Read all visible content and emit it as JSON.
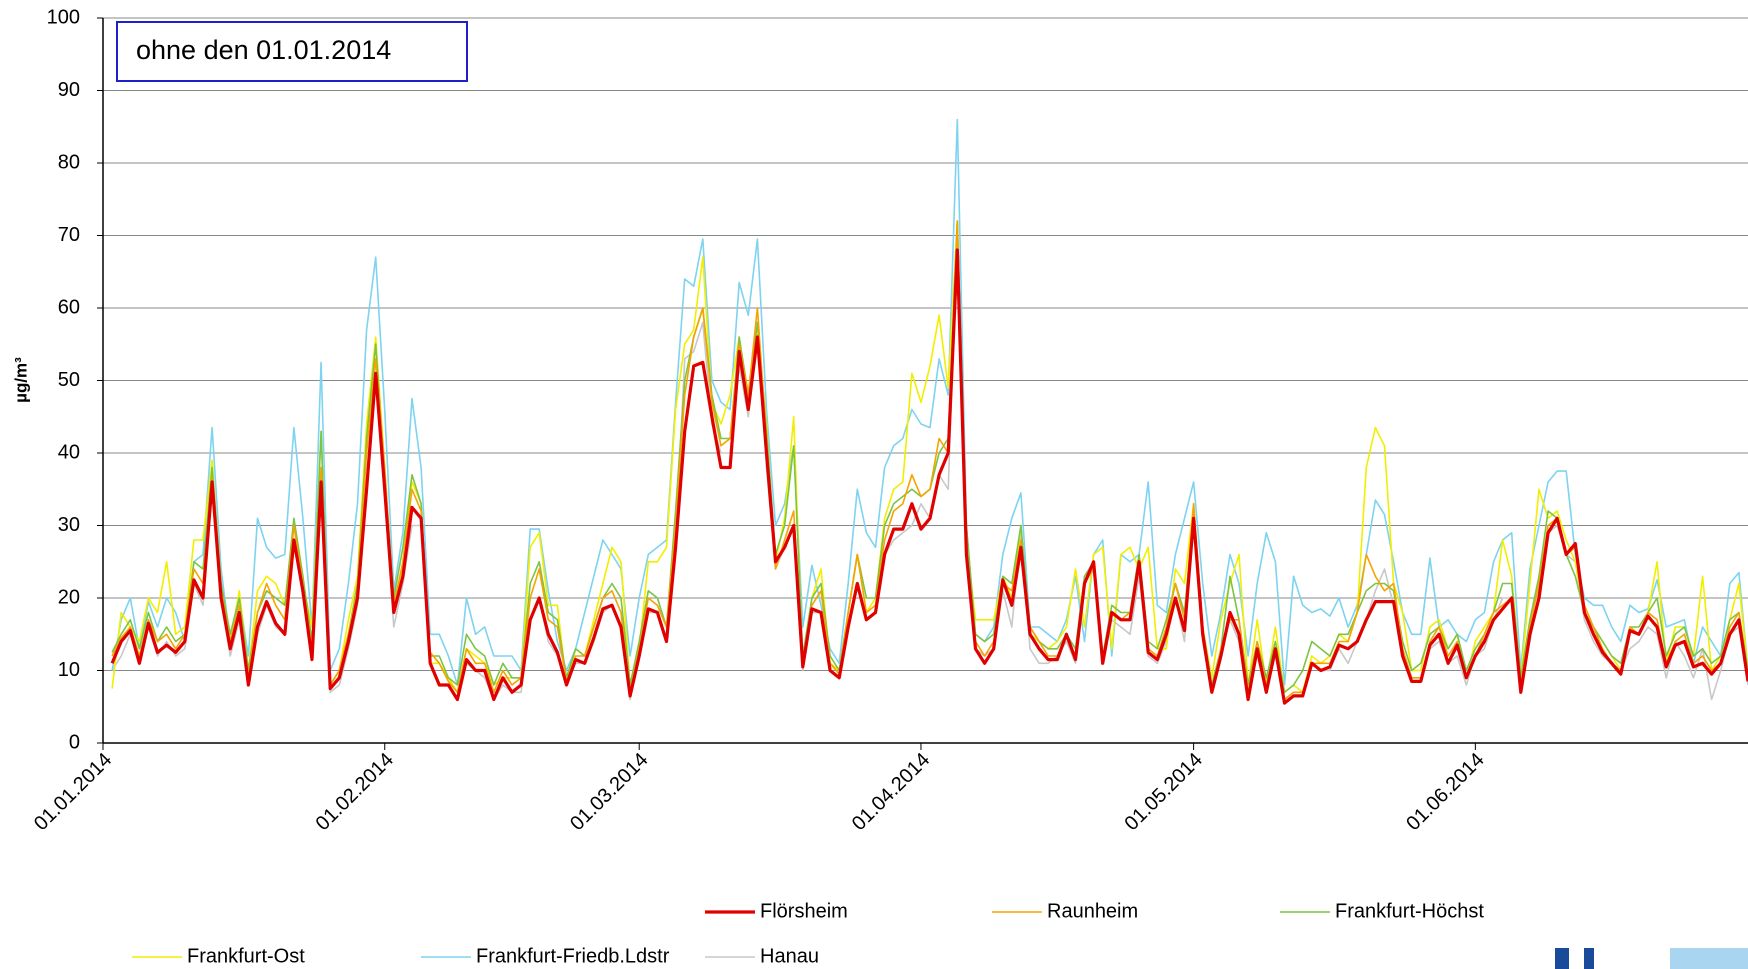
{
  "chart_data": {
    "type": "line",
    "annotation": "ohne den 01.01.2014",
    "y_label": "µg/m³",
    "xlim": [
      0,
      181
    ],
    "ylim": [
      0,
      100
    ],
    "yticks": [
      0,
      10,
      20,
      30,
      40,
      50,
      60,
      70,
      80,
      90,
      100
    ],
    "xticks": [
      {
        "value": 0,
        "label": "01.01.2014"
      },
      {
        "value": 31,
        "label": "01.02.2014"
      },
      {
        "value": 59,
        "label": "01.03.2014"
      },
      {
        "value": 90,
        "label": "01.04.2014"
      },
      {
        "value": 120,
        "label": "01.05.2014"
      },
      {
        "value": 151,
        "label": "01.06.2014"
      }
    ],
    "grid": true,
    "x": [
      1,
      2,
      3,
      4,
      5,
      6,
      7,
      8,
      9,
      10,
      11,
      12,
      13,
      14,
      15,
      16,
      17,
      18,
      19,
      20,
      21,
      22,
      23,
      24,
      25,
      26,
      27,
      28,
      29,
      30,
      31,
      32,
      33,
      34,
      35,
      36,
      37,
      38,
      39,
      40,
      41,
      42,
      43,
      44,
      45,
      46,
      47,
      48,
      49,
      50,
      51,
      52,
      53,
      54,
      55,
      56,
      57,
      58,
      59,
      60,
      61,
      62,
      63,
      64,
      65,
      66,
      67,
      68,
      69,
      70,
      71,
      72,
      73,
      74,
      75,
      76,
      77,
      78,
      79,
      80,
      81,
      82,
      83,
      84,
      85,
      86,
      87,
      88,
      89,
      90,
      91,
      92,
      93,
      94,
      95,
      96,
      97,
      98,
      99,
      100,
      101,
      102,
      103,
      104,
      105,
      106,
      107,
      108,
      109,
      110,
      111,
      112,
      113,
      114,
      115,
      116,
      117,
      118,
      119,
      120,
      121,
      122,
      123,
      124,
      125,
      126,
      127,
      128,
      129,
      130,
      131,
      132,
      133,
      134,
      135,
      136,
      137,
      138,
      139,
      140,
      141,
      142,
      143,
      144,
      145,
      146,
      147,
      148,
      149,
      150,
      151,
      152,
      153,
      154,
      155,
      156,
      157,
      158,
      159,
      160,
      161,
      162,
      163,
      164,
      165,
      166,
      167,
      168,
      169,
      170,
      171,
      172,
      173,
      174,
      175,
      176,
      177,
      178,
      179,
      180,
      181
    ],
    "series": [
      {
        "name": "Flörsheim",
        "color": "#e00000",
        "values": [
          11,
          14,
          15.5,
          11,
          16.5,
          12.5,
          13.5,
          12.5,
          14,
          22.5,
          20,
          36,
          20,
          13,
          18,
          8,
          16,
          19.5,
          16.5,
          15,
          28,
          21,
          11.5,
          36,
          7.5,
          9,
          14,
          20,
          35,
          51,
          35,
          18,
          23,
          32.5,
          31,
          11,
          8,
          8,
          6,
          11.5,
          10,
          10,
          6,
          9,
          7,
          8,
          17,
          20,
          15,
          12.5,
          8,
          11.5,
          11,
          14.5,
          18.5,
          19,
          16,
          6.5,
          12,
          18.5,
          18,
          14,
          27,
          43,
          52,
          52.5,
          45,
          38,
          38,
          54,
          46,
          56,
          40,
          25,
          27,
          30,
          10.5,
          18.5,
          18,
          10,
          9,
          16,
          22,
          17,
          18,
          26,
          29.5,
          29.5,
          33,
          29.5,
          31,
          37,
          40,
          68,
          26,
          13,
          11,
          13,
          22.5,
          19,
          27,
          15,
          13,
          11.5,
          11.5,
          15,
          11.5,
          22,
          25,
          11,
          18,
          17,
          17,
          25,
          12.5,
          11.5,
          15,
          20,
          15.5,
          31,
          15,
          7,
          12,
          18,
          15,
          6,
          13,
          7,
          13,
          5.5,
          6.5,
          6.5,
          11,
          10,
          10.5,
          13.5,
          13,
          14,
          17,
          19.5,
          19.5,
          19.5,
          12,
          8.5,
          8.5,
          13.5,
          15,
          11,
          13.5,
          9,
          12,
          14,
          17,
          18.5,
          20,
          7,
          15,
          20,
          29,
          31,
          26,
          27.5,
          18,
          15,
          12.5,
          11,
          9.5,
          15.5,
          15,
          17.5,
          16,
          10.5,
          13.5,
          14,
          10.5,
          11,
          9.5,
          11,
          15,
          17,
          8.5
        ]
      },
      {
        "name": "Raunheim",
        "color": "#f5a300",
        "values": [
          12,
          14.5,
          16,
          12,
          17,
          14,
          15,
          13,
          15,
          24,
          22,
          36.5,
          21,
          14,
          19,
          9,
          18,
          22,
          19,
          17,
          30,
          22,
          13,
          38,
          8,
          10,
          15,
          21,
          40,
          53,
          38,
          19,
          25,
          35,
          32,
          12.5,
          11,
          8.5,
          7,
          13,
          11,
          11,
          7,
          10,
          8,
          9,
          20,
          24,
          17,
          16,
          8.5,
          12,
          12,
          16,
          20,
          21,
          18,
          7,
          13,
          20,
          19,
          16,
          30,
          48,
          56,
          60,
          47,
          41,
          42,
          55,
          48,
          60,
          42,
          24,
          28,
          32,
          11,
          19,
          21,
          11,
          9.5,
          18,
          26,
          18,
          19,
          28,
          32,
          33,
          37,
          34,
          35,
          42,
          40,
          72,
          27,
          14,
          12,
          14,
          22,
          21,
          28,
          16,
          14,
          12,
          12,
          15,
          12,
          22,
          24,
          12,
          18,
          17,
          18,
          25,
          13,
          12,
          16,
          22,
          17,
          33,
          16,
          7,
          13,
          17,
          17,
          7,
          14,
          8,
          13,
          6,
          7,
          7,
          11,
          11,
          11,
          14,
          14,
          18,
          26,
          23,
          21,
          22,
          13,
          9,
          9,
          14,
          16,
          12,
          14,
          9,
          12,
          15,
          18,
          19,
          20,
          8,
          16,
          22,
          30,
          31,
          26,
          27,
          19,
          16,
          13,
          11,
          10,
          16,
          15,
          18,
          17,
          11,
          14,
          15,
          11,
          12,
          10,
          11,
          16,
          18,
          9
        ]
      },
      {
        "name": "Frankfurt-Höchst",
        "color": "#7cc444",
        "values": [
          12.5,
          15,
          17,
          13,
          18,
          14,
          16,
          14,
          15,
          25,
          24,
          38,
          22,
          15,
          20,
          10,
          18,
          21,
          20,
          19,
          31,
          23,
          14,
          43,
          8,
          10,
          15,
          22,
          42,
          55,
          37,
          20,
          27,
          37,
          33,
          12,
          12,
          9,
          8,
          15,
          13,
          12,
          8,
          11,
          9,
          9,
          22,
          25,
          18,
          17,
          9,
          13,
          12,
          16,
          20,
          22,
          20,
          8,
          14,
          21,
          20,
          16,
          32,
          50,
          56,
          60,
          48,
          42,
          42,
          56,
          48,
          58,
          43,
          26,
          30,
          41,
          12,
          20,
          22,
          12,
          10,
          18,
          26,
          20,
          20,
          30,
          33,
          34,
          35,
          34,
          35,
          40,
          42,
          72,
          30,
          15,
          14,
          15,
          23,
          22,
          30,
          16,
          14,
          13,
          13,
          15,
          13,
          23,
          25,
          12,
          19,
          18,
          18,
          26,
          14,
          13,
          17,
          22,
          18,
          32,
          16,
          8,
          13,
          23,
          17,
          8,
          14,
          9,
          14,
          7,
          8,
          10,
          14,
          13,
          12,
          15,
          15,
          18,
          21,
          22,
          22,
          21,
          14,
          10,
          11,
          15,
          16,
          13,
          15,
          10,
          13,
          15,
          18,
          22,
          22,
          9,
          17,
          23,
          32,
          31,
          26,
          23,
          18,
          16,
          14,
          12,
          11,
          16,
          16,
          18,
          20,
          12,
          15,
          16,
          12,
          13,
          11,
          12,
          17,
          18,
          10
        ]
      },
      {
        "name": "Frankfurt-Ost",
        "color": "#f2ee00",
        "values": [
          7.5,
          18,
          16,
          14,
          20,
          18,
          25,
          15,
          16,
          28,
          28,
          39,
          22,
          14,
          21,
          10,
          21,
          23,
          22,
          19,
          30,
          22,
          16,
          43,
          8,
          10,
          17,
          23,
          44,
          56,
          38,
          18,
          25,
          36,
          33,
          11,
          11,
          9,
          7,
          13,
          12,
          11,
          8,
          9,
          9,
          9,
          27,
          29,
          19,
          19,
          8,
          13,
          12,
          17,
          22,
          27,
          25,
          8,
          13,
          25,
          25,
          27,
          46,
          55,
          57,
          67,
          47,
          44,
          48,
          56,
          47,
          57,
          44,
          25,
          31,
          45,
          11,
          20,
          24,
          11,
          10,
          18,
          26,
          18,
          20,
          31,
          35,
          36,
          51,
          47,
          52,
          59,
          49,
          72,
          28,
          17,
          17,
          17,
          23,
          20,
          30,
          15,
          14,
          13,
          14,
          16,
          24,
          16,
          26,
          27,
          13,
          26,
          27,
          24,
          27,
          13,
          13,
          24,
          22,
          33,
          16,
          9,
          17,
          22,
          26,
          8,
          17,
          8,
          16,
          7,
          8,
          7,
          12,
          11,
          12,
          15,
          14,
          18,
          38,
          43.5,
          41,
          22,
          18,
          10,
          10,
          16,
          17,
          13,
          15,
          9,
          14,
          16,
          18,
          28,
          23,
          9,
          22,
          35,
          31,
          32,
          28,
          25,
          18,
          16,
          14,
          12,
          10,
          16,
          15,
          18,
          25,
          11,
          16,
          16,
          12,
          23,
          10,
          12,
          17,
          22,
          10
        ]
      },
      {
        "name": "Frankfurt-Friedb.Ldstr",
        "color": "#7dd3f0",
        "values": [
          10,
          17,
          20,
          13,
          19.5,
          16,
          20,
          18,
          14,
          25,
          26,
          43.5,
          24,
          14,
          20,
          12,
          31,
          27,
          25.5,
          26,
          43.5,
          31,
          16,
          52.5,
          10,
          13,
          22,
          33,
          57,
          67,
          46,
          21,
          29,
          47.5,
          38,
          15,
          15,
          12,
          8,
          20,
          15,
          16,
          12,
          12,
          12,
          10,
          29.5,
          29.5,
          21,
          14,
          10,
          13,
          18,
          23,
          28,
          26,
          24,
          12,
          20,
          26,
          27,
          28,
          47,
          64,
          63,
          69.5,
          50,
          47,
          46,
          63.5,
          59,
          69.5,
          46,
          30,
          33,
          41,
          16,
          24.5,
          19,
          13,
          11,
          22,
          35,
          29,
          27,
          38,
          41,
          42,
          46,
          44,
          43.5,
          53,
          48,
          86,
          30,
          15,
          14,
          16,
          26,
          31,
          34.5,
          16,
          16,
          15,
          14,
          17,
          23,
          14,
          26,
          28,
          12,
          26,
          25,
          26,
          36,
          19,
          18,
          26,
          31,
          36,
          22,
          12,
          18,
          26,
          22,
          12,
          22,
          29,
          25,
          8,
          23,
          19,
          18,
          18.5,
          17.5,
          20,
          16,
          19,
          26,
          33.5,
          31.5,
          25,
          18,
          15,
          15,
          25.5,
          16,
          17,
          15,
          14,
          17,
          18,
          25,
          28,
          29,
          10,
          24,
          30,
          36,
          37.5,
          37.5,
          26,
          20,
          19,
          19,
          16,
          14,
          19,
          18,
          18.5,
          22.5,
          16,
          16.5,
          17,
          11,
          16,
          14,
          12,
          22,
          23.5,
          10
        ]
      },
      {
        "name": "Hanau",
        "color": "#c8c8c8",
        "values": [
          10,
          12,
          15,
          11,
          16,
          12,
          14,
          12,
          13,
          22,
          19,
          35,
          20,
          12,
          17,
          8,
          15,
          19,
          16,
          15,
          28,
          20,
          12,
          35,
          7,
          8,
          13,
          19,
          34,
          50,
          34,
          16,
          22,
          30,
          30,
          11,
          8,
          8,
          6,
          11,
          10,
          9,
          6,
          8,
          7,
          7,
          17,
          20,
          14,
          12,
          8,
          11,
          11,
          14,
          18,
          19,
          16,
          6,
          12,
          18,
          18,
          14,
          27,
          53,
          54,
          58,
          44,
          40,
          40,
          52,
          45,
          57,
          38,
          24,
          27,
          30,
          10,
          18,
          18,
          10,
          9,
          16,
          22,
          17,
          18,
          26,
          28,
          29,
          30,
          33,
          31,
          37,
          35,
          70,
          25,
          13,
          12,
          13,
          21,
          16,
          29,
          13,
          11,
          11,
          12,
          14,
          11,
          22,
          24,
          11,
          17,
          16,
          15,
          23,
          12,
          11,
          14,
          20,
          14,
          32,
          14,
          7,
          12,
          17,
          14,
          7,
          12,
          7,
          12,
          6,
          7,
          7,
          11,
          10,
          10,
          13,
          11,
          14,
          17,
          21,
          24,
          19,
          12,
          9,
          9,
          13,
          14,
          11,
          12,
          8,
          12,
          13,
          17,
          20,
          20,
          8,
          14,
          21,
          29,
          30,
          26,
          25,
          17,
          14,
          12,
          11,
          10,
          13,
          14,
          16,
          15,
          9,
          14,
          12,
          9,
          13,
          6,
          10,
          15,
          16,
          8
        ]
      }
    ]
  }
}
